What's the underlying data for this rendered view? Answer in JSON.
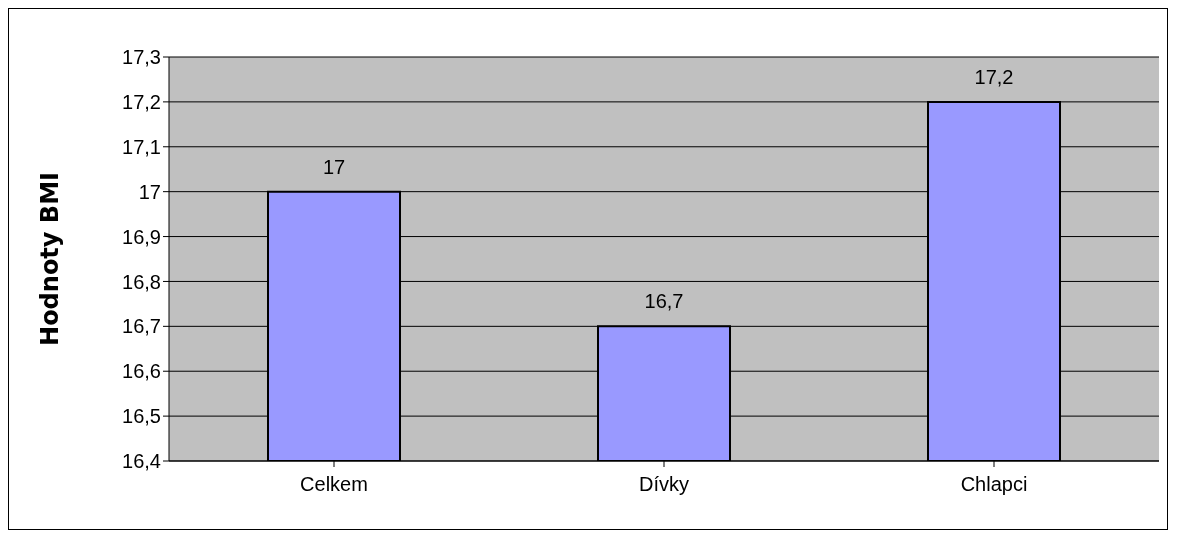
{
  "chart_data": {
    "type": "bar",
    "ylabel": "Hodnoty BMI",
    "categories": [
      "Celkem",
      "Dívky",
      "Chlapci"
    ],
    "values": [
      17,
      16.7,
      17.2
    ],
    "color": "#9999ff",
    "value_labels": [
      "17",
      "16,7",
      "17,2"
    ],
    "ylim": [
      16.4,
      17.3
    ],
    "yticks": [
      {
        "value": 16.4,
        "label": "16,4"
      },
      {
        "value": 16.5,
        "label": "16,5"
      },
      {
        "value": 16.6,
        "label": "16,6"
      },
      {
        "value": 16.7,
        "label": "16,7"
      },
      {
        "value": 16.8,
        "label": "16,8"
      },
      {
        "value": 16.9,
        "label": "16,9"
      },
      {
        "value": 17,
        "label": "17"
      },
      {
        "value": 17.1,
        "label": "17,1"
      },
      {
        "value": 17.2,
        "label": "17,2"
      },
      {
        "value": 17.3,
        "label": "17,3"
      }
    ],
    "grid": "y"
  }
}
